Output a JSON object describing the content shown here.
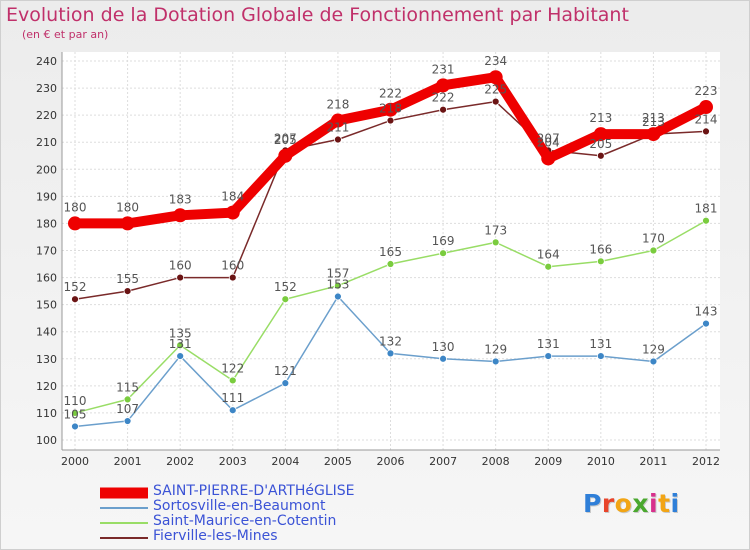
{
  "title": "Evolution de la Dotation Globale de Fonctionnement par Habitant",
  "subtitle": "(en € et par an)",
  "logo": {
    "text": "Proxiti",
    "letters": [
      "P",
      "r",
      "o",
      "x",
      "i",
      "t",
      "i"
    ],
    "colors": [
      "#2f7fd8",
      "#e8442a",
      "#f2a515",
      "#4aa82e",
      "#d8308c",
      "#f2a515",
      "#2f7fd8"
    ]
  },
  "chart_data": {
    "type": "line",
    "x": [
      "2000",
      "2001",
      "2002",
      "2003",
      "2004",
      "2005",
      "2006",
      "2007",
      "2008",
      "2009",
      "2010",
      "2011",
      "2012"
    ],
    "ylim": [
      100,
      240
    ],
    "yticks": [
      100,
      110,
      120,
      130,
      140,
      150,
      160,
      170,
      180,
      190,
      200,
      210,
      220,
      230,
      240
    ],
    "grid": true,
    "legend_position": "bottom-left",
    "series": [
      {
        "name": "SAINT-PIERRE-D'ARTHéGLISE",
        "values": [
          180,
          180,
          183,
          184,
          205,
          218,
          222,
          231,
          234,
          204,
          213,
          213,
          223
        ],
        "color": "#ee0000",
        "emphasis": "thick"
      },
      {
        "name": "Sortosville-en-Beaumont",
        "values": [
          105,
          107,
          131,
          111,
          121,
          153,
          132,
          130,
          129,
          131,
          131,
          129,
          143
        ],
        "color": "#6b9fcc",
        "marker": "#3d86c6"
      },
      {
        "name": "Saint-Maurice-en-Cotentin",
        "values": [
          110,
          115,
          135,
          122,
          152,
          157,
          165,
          169,
          173,
          164,
          166,
          170,
          181
        ],
        "color": "#99dd66",
        "marker": "#7acc3e"
      },
      {
        "name": "Fierville-les-Mines",
        "values": [
          152,
          155,
          160,
          160,
          207,
          211,
          218,
          222,
          225,
          207,
          205,
          213,
          214
        ],
        "color": "#7a2a2a",
        "marker": "#6b1414"
      }
    ]
  }
}
